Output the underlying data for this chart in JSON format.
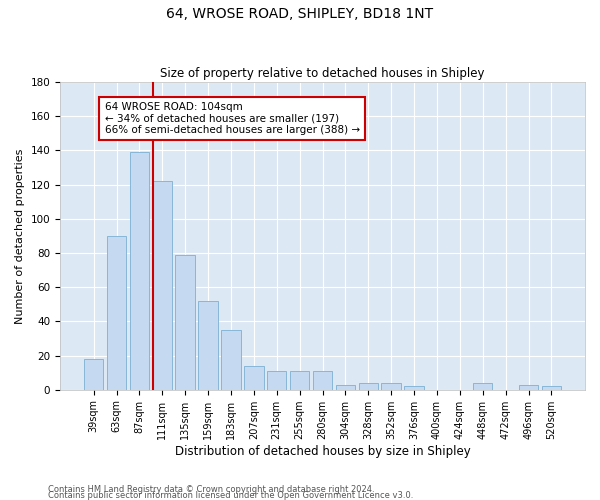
{
  "title": "64, WROSE ROAD, SHIPLEY, BD18 1NT",
  "subtitle": "Size of property relative to detached houses in Shipley",
  "xlabel": "Distribution of detached houses by size in Shipley",
  "ylabel": "Number of detached properties",
  "footnote1": "Contains HM Land Registry data © Crown copyright and database right 2024.",
  "footnote2": "Contains public sector information licensed under the Open Government Licence v3.0.",
  "bar_labels": [
    "39sqm",
    "63sqm",
    "87sqm",
    "111sqm",
    "135sqm",
    "159sqm",
    "183sqm",
    "207sqm",
    "231sqm",
    "255sqm",
    "280sqm",
    "304sqm",
    "328sqm",
    "352sqm",
    "376sqm",
    "400sqm",
    "424sqm",
    "448sqm",
    "472sqm",
    "496sqm",
    "520sqm"
  ],
  "bar_values": [
    18,
    90,
    139,
    122,
    79,
    52,
    35,
    14,
    11,
    11,
    11,
    3,
    4,
    4,
    2,
    0,
    0,
    4,
    0,
    3,
    2
  ],
  "bar_color": "#c5d9f0",
  "bar_edge_color": "#7bafd4",
  "bg_color": "#dde8f5",
  "grid_color": "#ffffff",
  "fig_bg_color": "#ffffff",
  "vline_color": "#cc0000",
  "annotation_title": "64 WROSE ROAD: 104sqm",
  "annotation_line1": "← 34% of detached houses are smaller (197)",
  "annotation_line2": "66% of semi-detached houses are larger (388) →",
  "annotation_box_color": "#cc0000",
  "ylim": [
    0,
    180
  ],
  "yticks": [
    0,
    20,
    40,
    60,
    80,
    100,
    120,
    140,
    160,
    180
  ]
}
